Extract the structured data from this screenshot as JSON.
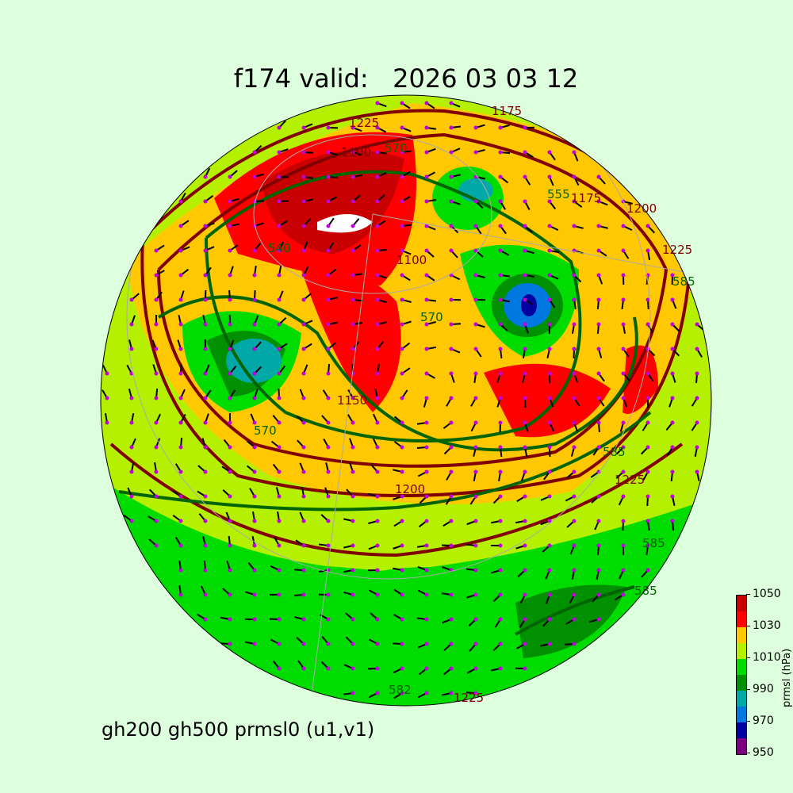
{
  "title": "f174 valid:   2026 03 03 12",
  "subtitle": "gh200 gh500 prmsl0 (u1,v1)",
  "colorbar": {
    "label": "prmsl (hPa)",
    "ticks": [
      "950",
      "970",
      "990",
      "1010",
      "1030",
      "1050"
    ],
    "levels": [
      950,
      960,
      970,
      980,
      990,
      1000,
      1010,
      1020,
      1030,
      1040,
      1050
    ],
    "colors": [
      "#7a0080",
      "#0000a0",
      "#0078e0",
      "#00a8a8",
      "#009000",
      "#00dc00",
      "#b4f000",
      "#ffc800",
      "#ff0000",
      "#c80000"
    ]
  },
  "contour_colors": {
    "gh200": "#800000",
    "gh500": "#006400"
  },
  "contour_labels": {
    "gh200": [
      "1175",
      "1100",
      "1150",
      "1200",
      "1225",
      "1225",
      "1100",
      "1175",
      "1200",
      "1225",
      "1225"
    ],
    "gh500": [
      "540",
      "570",
      "570",
      "585",
      "585",
      "555",
      "582",
      "585",
      "585",
      "570"
    ]
  },
  "projection": "orthographic north polar",
  "wind_barbs": "magenta dots with black shafts"
}
